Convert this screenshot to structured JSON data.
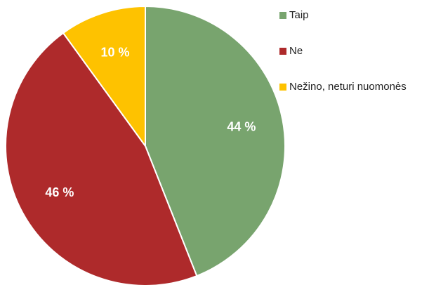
{
  "chart_data": {
    "type": "pie",
    "categories": [
      "Taip",
      "Ne",
      "Nežino, neturi nuomonės"
    ],
    "values": [
      44,
      46,
      10
    ],
    "value_labels": [
      "44 %",
      "46 %",
      "10 %"
    ],
    "colors": [
      "#78a46e",
      "#ae2a2b",
      "#fec200"
    ],
    "legend": "right"
  }
}
